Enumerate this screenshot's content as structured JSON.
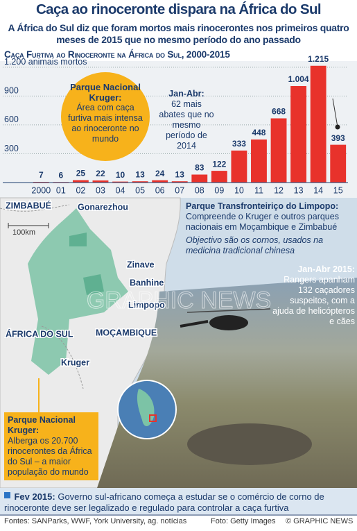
{
  "header": {
    "title": "Caça ao rinoceronte dispara na África do Sul",
    "subtitle": "A África do Sul diz que foram mortos mais rinocerontes nos primeiros quatro meses de 2015 que no mesmo período do ano passado"
  },
  "chart_data": {
    "type": "bar",
    "title": "Caça Furtiva ao Rinoceronte na África do Sul, 2000-2015",
    "categories": [
      "2000",
      "01",
      "02",
      "03",
      "04",
      "05",
      "06",
      "07",
      "08",
      "09",
      "10",
      "11",
      "12",
      "13",
      "14",
      "15"
    ],
    "values": [
      7,
      6,
      25,
      22,
      10,
      13,
      24,
      13,
      83,
      122,
      333,
      448,
      668,
      1004,
      1215,
      393
    ],
    "value_labels": [
      "7",
      "6",
      "25",
      "22",
      "10",
      "13",
      "24",
      "13",
      "83",
      "122",
      "333",
      "448",
      "668",
      "1.004",
      "1.215",
      "393"
    ],
    "color": "#e8322b",
    "ylim": [
      0,
      1300
    ],
    "yticks": [
      300,
      600,
      900,
      {
        "value": 1200,
        "label": "1.200 animais mortos"
      }
    ],
    "grid": true,
    "annotations": [
      {
        "title": "Parque Nacional Kruger:",
        "text": "Área com caça furtiva mais intensa ao rinoceronte no mundo"
      },
      {
        "title": "Jan-Abr:",
        "text": "62 mais abates que no mesmo período de 2014"
      }
    ]
  },
  "map": {
    "labels": [
      "ZIMBABUÉ",
      "Gonarezhou",
      "Zinave",
      "Banhine",
      "Limpopo",
      "MOÇAMBIQUE",
      "ÁFRICA DO SUL",
      "Kruger"
    ],
    "scale": "100km",
    "park": {
      "title": "Parque Transfronteiriço do Limpopo:",
      "text": "Compreende o Kruger e outros parques nacionais em Moçambique e Zimbabué",
      "note": "Objectivo são os cornos, usados na medicina tradicional chinesa"
    },
    "kruger": {
      "title": "Parque Nacional Kruger:",
      "text": "Alberga os 20.700 rinocerontes da África do Sul – a maior população do mundo"
    }
  },
  "photo": {
    "title": "Jan-Abr 2015:",
    "text": "Rangers apanham 132 caçadores suspeitos, com a ajuda de helicópteros e cães",
    "watermark": "GRAPHIC NEWS"
  },
  "note": {
    "title": "Fev 2015:",
    "text": "Governo sul-africano começa a estudar se o comércio de corno de rinoceronte deve ser legalizado e regulado para controlar a caça furtiva"
  },
  "footer": {
    "sources": "Fontes: SANParks, WWF, York University, ag. notícias",
    "photo": "Foto: Getty Images",
    "credit": "© GRAPHIC NEWS"
  }
}
